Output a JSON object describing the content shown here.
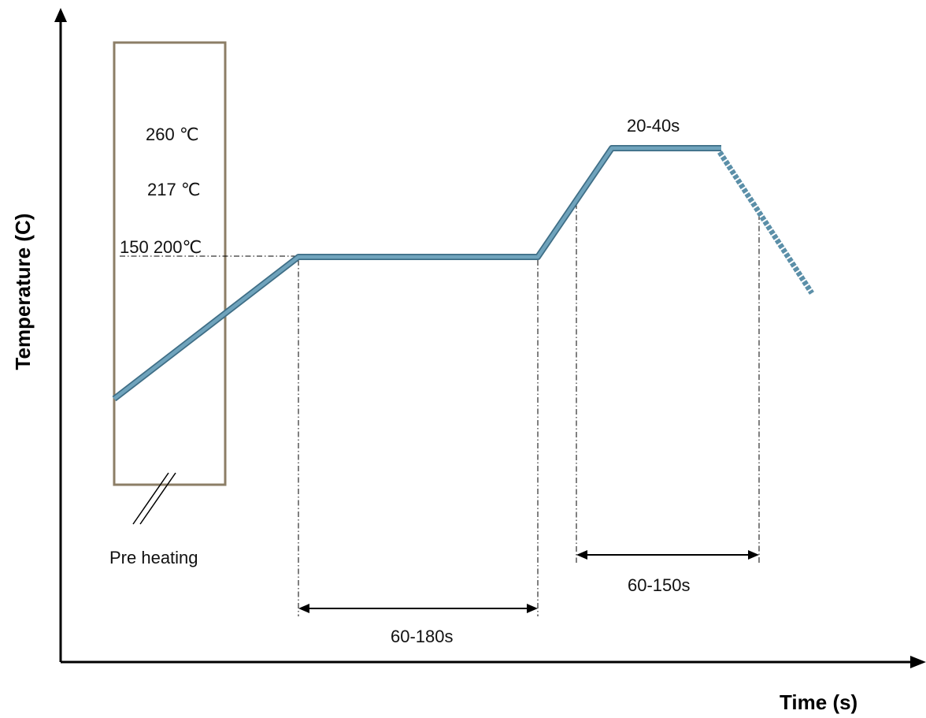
{
  "axes": {
    "y_title": "Temperature (C)",
    "x_title": "Time (s)"
  },
  "preheat_box": {
    "temp_labels": [
      "260 ℃",
      "217 ℃",
      "150 200℃"
    ],
    "caption": "Pre heating"
  },
  "durations": {
    "soak": "60-180s",
    "above_liquidus": "60-150s",
    "peak": "20-40s"
  },
  "colors": {
    "curve": "#5b8fa8",
    "curve_edge": "#3f6e86",
    "box": "#8c7e66",
    "axis": "#000000"
  }
}
